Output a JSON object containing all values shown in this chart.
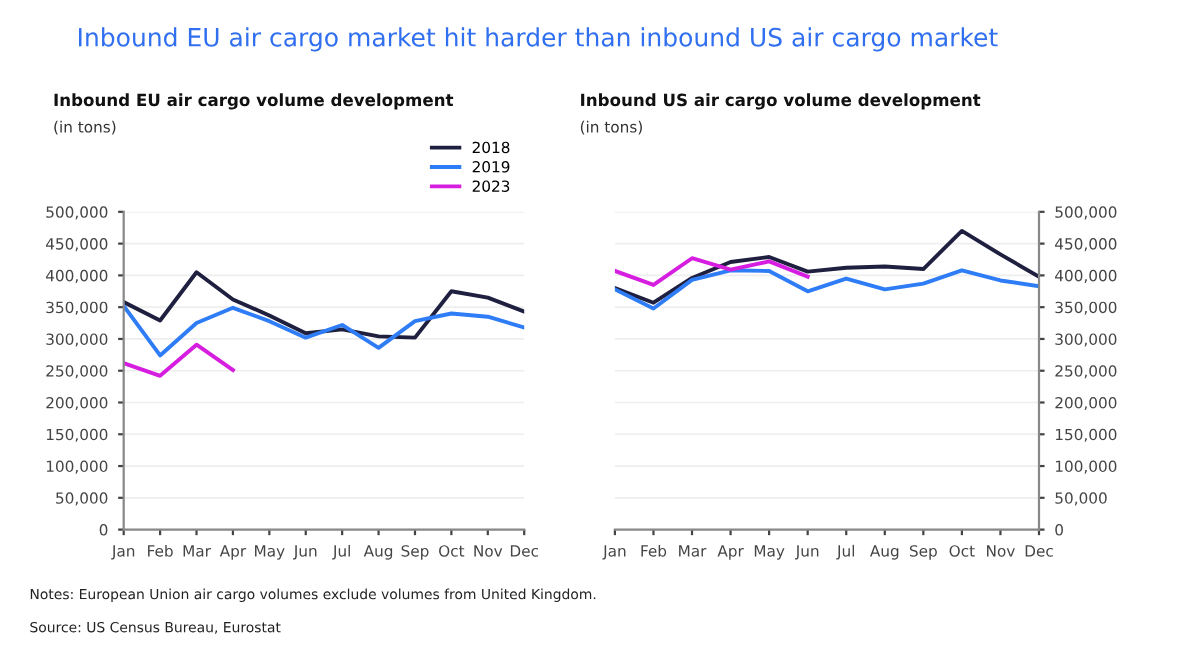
{
  "chart_data": [
    {
      "type": "line",
      "title": "Inbound EU air cargo volume development",
      "ylabel": "(in tons)",
      "annotations": [
        "Inbound EU air cargo market hit harder than inbound US air cargo market",
        "Notes: European Union air cargo volumes exclude volumes from United Kingdom.",
        "Source: US Census Bureau, Eurostat"
      ],
      "categories": [
        "Jan",
        "Feb",
        "Mar",
        "Apr",
        "May",
        "Jun",
        "Jul",
        "Aug",
        "Sep",
        "Oct",
        "Nov",
        "Dec"
      ],
      "series": [
        {
          "name": "2018",
          "color": "#1f2040",
          "values": [
            358000,
            329000,
            405000,
            362000,
            337000,
            309000,
            315000,
            304000,
            302000,
            375000,
            365000,
            343000
          ]
        },
        {
          "name": "2019",
          "color": "#2f7df6",
          "values": [
            352000,
            274000,
            325000,
            349000,
            328000,
            302000,
            322000,
            286000,
            328000,
            340000,
            335000,
            318000
          ]
        },
        {
          "name": "2023",
          "color": "#d61ee0",
          "values": [
            262000,
            242000,
            291000,
            251000,
            null,
            null,
            null,
            null,
            null,
            null,
            null,
            null
          ]
        }
      ],
      "ylim": [
        0,
        500000
      ],
      "yticks": [
        {
          "value": 0,
          "label": "0"
        },
        {
          "value": 50000,
          "label": "50,000"
        },
        {
          "value": 100000,
          "label": "100,000"
        },
        {
          "value": 150000,
          "label": "150,000"
        },
        {
          "value": 200000,
          "label": "200,000"
        },
        {
          "value": 250000,
          "label": "250,000"
        },
        {
          "value": 300000,
          "label": "300,000"
        },
        {
          "value": 350000,
          "label": "350,000"
        },
        {
          "value": 400000,
          "label": "400,000"
        },
        {
          "value": 450000,
          "label": "450,000"
        },
        {
          "value": 500000,
          "label": "500,000"
        }
      ],
      "grid": "y",
      "legend": "top right",
      "marker": "none",
      "line_style": "solid"
    },
    {
      "type": "line",
      "title": "Inbound US air cargo volume development",
      "y2label": "(in tons)",
      "categories": [
        "Jan",
        "Feb",
        "Mar",
        "Apr",
        "May",
        "Jun",
        "Jul",
        "Aug",
        "Sep",
        "Oct",
        "Nov",
        "Dec"
      ],
      "series": [
        {
          "color": "#1f2040",
          "axis": "y2",
          "values": [
            380000,
            357000,
            396000,
            421000,
            429000,
            406000,
            412000,
            414000,
            410000,
            470000,
            433000,
            398000
          ]
        },
        {
          "color": "#2f7df6",
          "axis": "y2",
          "values": [
            378000,
            348000,
            393000,
            408000,
            407000,
            375000,
            395000,
            378000,
            387000,
            408000,
            392000,
            383000
          ]
        },
        {
          "color": "#d61ee0",
          "axis": "y2",
          "values": [
            407000,
            385000,
            427000,
            409000,
            422000,
            398000,
            null,
            null,
            null,
            null,
            null,
            null
          ]
        }
      ],
      "y2lim": [
        0,
        500000
      ],
      "y2ticks": [
        {
          "value": 0,
          "label": "0"
        },
        {
          "value": 50000,
          "label": "50,000"
        },
        {
          "value": 100000,
          "label": "100,000"
        },
        {
          "value": 150000,
          "label": "150,000"
        },
        {
          "value": 200000,
          "label": "200,000"
        },
        {
          "value": 250000,
          "label": "250,000"
        },
        {
          "value": 300000,
          "label": "300,000"
        },
        {
          "value": 350000,
          "label": "350,000"
        },
        {
          "value": 400000,
          "label": "400,000"
        },
        {
          "value": 450000,
          "label": "450,000"
        },
        {
          "value": 500000,
          "label": "500,000"
        }
      ],
      "grid": "y",
      "legend": false,
      "marker": "none",
      "line_style": "solid"
    }
  ]
}
